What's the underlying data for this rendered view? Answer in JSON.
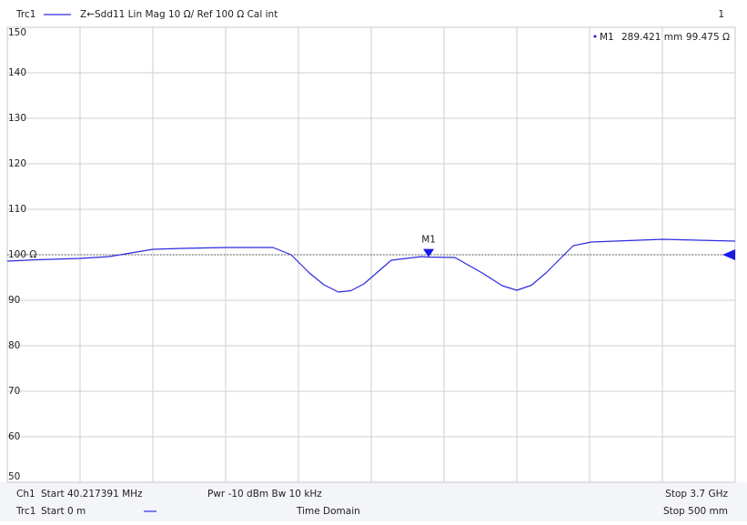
{
  "chart_data": {
    "type": "line",
    "header": {
      "trace": "Trc1",
      "description": "Z←Sdd11  Lin Mag  10 Ω/ Ref 100 Ω  Cal int",
      "channel": "1"
    },
    "footer": {
      "channel": "Ch1",
      "start_freq": "Start  40.217391 MHz",
      "power": "Pwr  -10 dBm  Bw  10 kHz",
      "stop_freq": "Stop  3.7 GHz",
      "start_dist": "Start  0 m",
      "mode": "Time  Domain",
      "stop_dist": "Stop  500 mm"
    },
    "x": [
      0,
      20,
      50,
      70,
      100,
      120,
      150,
      182.5,
      195,
      207.5,
      217.5,
      227.5,
      236,
      245,
      263.75,
      284.4,
      288.75,
      307.5,
      326.25,
      340,
      350,
      360,
      370,
      388.75,
      401.25,
      450,
      500
    ],
    "series": [
      {
        "name": "Trc1",
        "color": "#2a2ae0",
        "values": [
          98.6,
          98.9,
          99.2,
          99.6,
          101.2,
          101.4,
          101.6,
          101.6,
          100,
          96,
          93.4,
          91.8,
          92.1,
          93.6,
          98.8,
          99.6,
          99.5,
          99.4,
          96,
          93.2,
          92.2,
          93.3,
          96,
          102,
          102.8,
          103.4,
          103
        ]
      }
    ],
    "xlim": [
      0,
      500
    ],
    "ylim": [
      50,
      150
    ],
    "yticks": [
      50,
      60,
      70,
      80,
      90,
      {
        "value": 100,
        "label": "100 Ω"
      },
      110,
      120,
      130,
      140,
      150
    ],
    "reference": 100,
    "grid": true,
    "marker": {
      "name": "M1",
      "x": 289.421,
      "x_label": "289.421 mm",
      "y": 99.475,
      "y_label": "99.475 Ω"
    }
  }
}
